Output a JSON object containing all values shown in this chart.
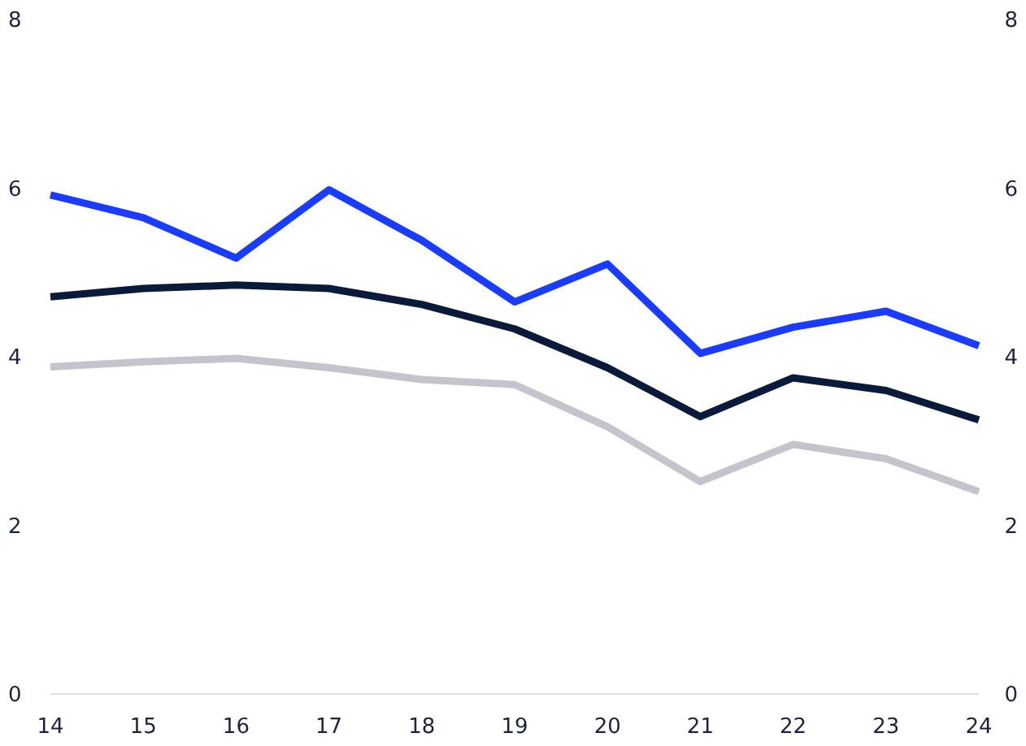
{
  "chart_data": {
    "type": "line",
    "categories": [
      "14",
      "15",
      "16",
      "17",
      "18",
      "19",
      "20",
      "21",
      "22",
      "23",
      "24"
    ],
    "series": [
      {
        "color": "#1a3cff",
        "values": [
          5.92,
          5.65,
          5.17,
          5.98,
          5.38,
          4.65,
          5.1,
          4.04,
          4.35,
          4.54,
          4.13
        ]
      },
      {
        "color": "#0a1a3a",
        "values": [
          4.71,
          4.81,
          4.85,
          4.81,
          4.62,
          4.33,
          3.87,
          3.29,
          3.75,
          3.6,
          3.25
        ]
      },
      {
        "color": "#c4c4cc",
        "values": [
          3.88,
          3.94,
          3.98,
          3.87,
          3.73,
          3.67,
          3.17,
          2.52,
          2.96,
          2.79,
          2.4
        ]
      }
    ],
    "ylim": [
      0,
      8
    ],
    "yticks": [
      0,
      2,
      4,
      6,
      8
    ],
    "y2lim": [
      0,
      8
    ],
    "y2ticks": [
      0,
      2,
      4,
      6,
      8
    ],
    "grid": false,
    "marker": "none",
    "line_style": "solid"
  }
}
